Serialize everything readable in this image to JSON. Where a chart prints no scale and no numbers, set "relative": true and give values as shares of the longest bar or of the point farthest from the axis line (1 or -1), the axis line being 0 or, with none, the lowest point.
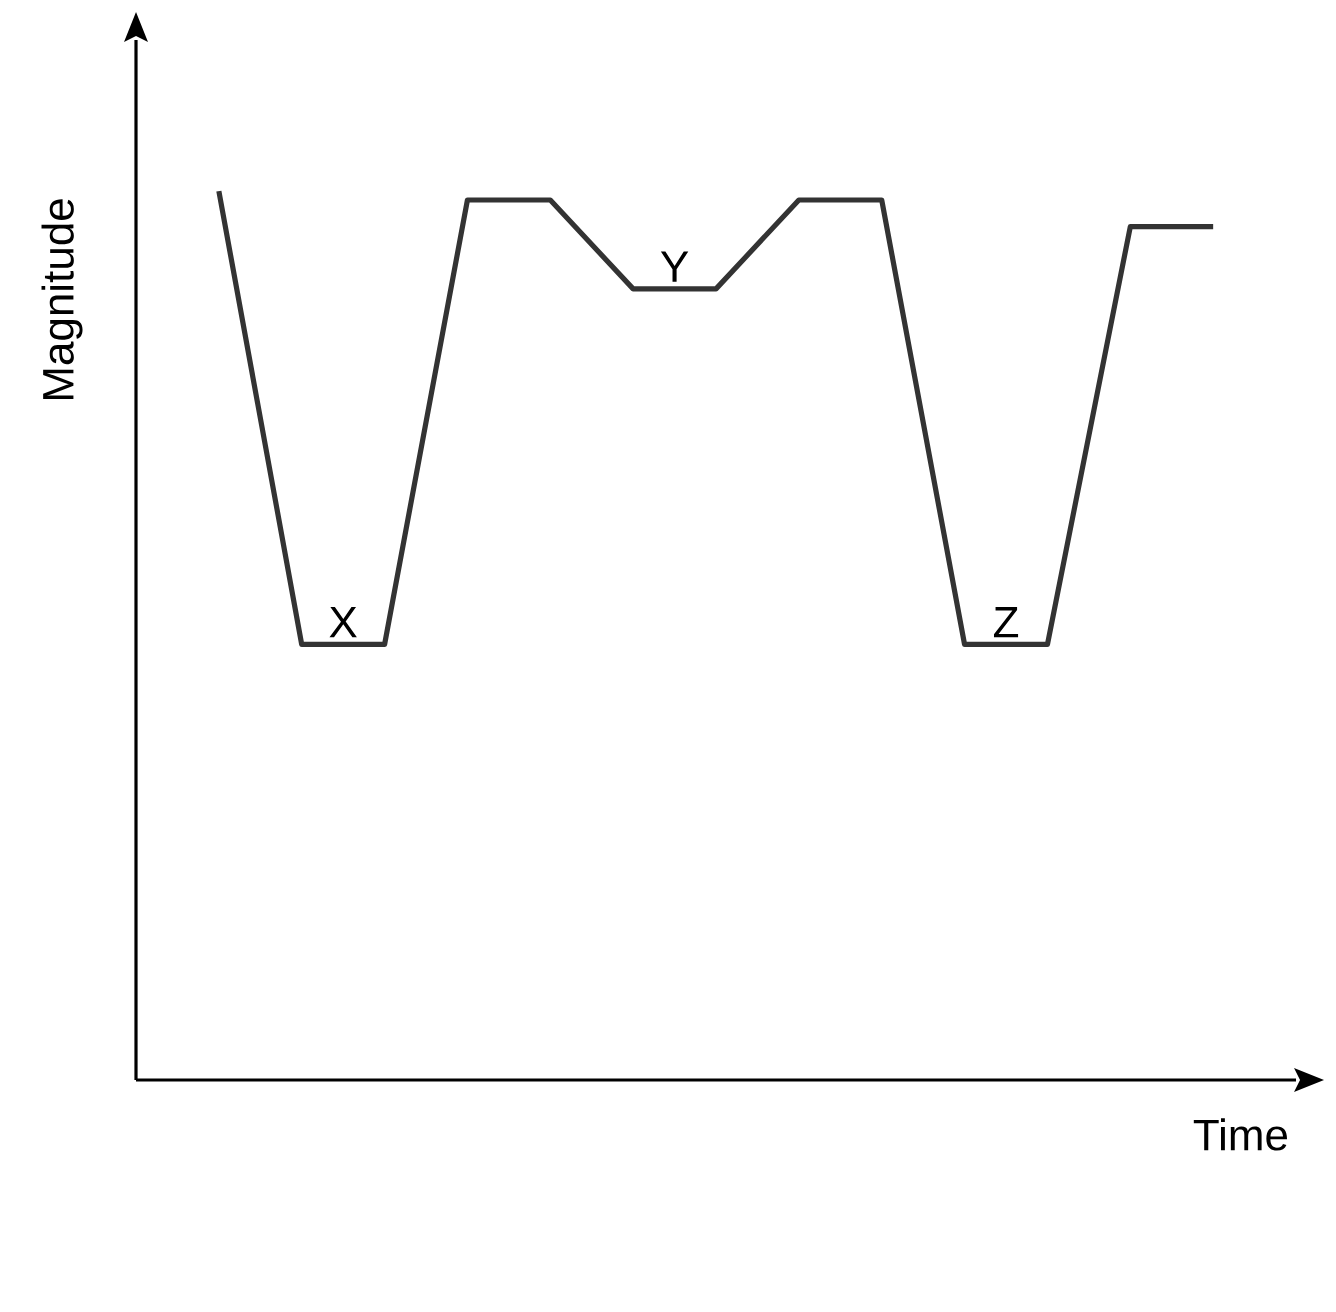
{
  "chart_data": {
    "type": "line",
    "relative": true,
    "xlabel": "Time",
    "ylabel": "Magnitude",
    "categories": [
      null,
      null,
      null,
      null,
      null,
      null,
      null,
      null,
      null,
      null,
      null,
      null,
      null
    ],
    "series": [
      {
        "color": "#333333",
        "values": [
          1,
          0.49,
          0.49,
          0.99,
          0.99,
          0.89,
          0.89,
          0.99,
          0.99,
          0.49,
          0.49,
          0.96,
          0.96
        ]
      }
    ],
    "annotations": [
      "X",
      "Y",
      "Z"
    ]
  }
}
